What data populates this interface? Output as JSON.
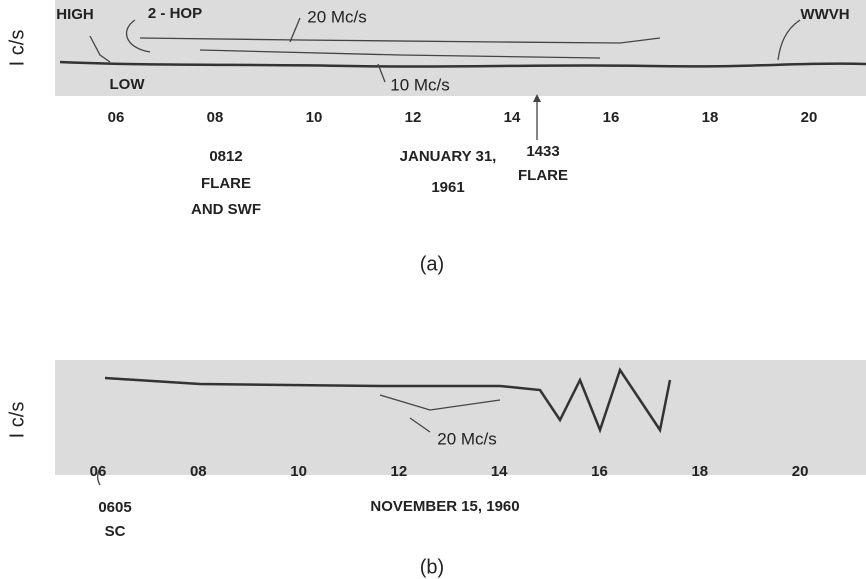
{
  "panel_a": {
    "y_label": "I c/s",
    "hours": [
      "06",
      "08",
      "10",
      "12",
      "14",
      "16",
      "18",
      "20"
    ],
    "annotations": {
      "high": "HIGH",
      "low": "LOW",
      "two_hop": "2 - HOP",
      "mc20": "20 Mc/s",
      "mc10": "10 Mc/s",
      "wwvh": "WWVH",
      "flare1": [
        "0812",
        "FLARE",
        "AND SWF"
      ],
      "date": [
        "JANUARY 31,",
        "1961"
      ],
      "flare2": [
        "1433",
        "FLARE"
      ]
    },
    "caption": "(a)"
  },
  "panel_b": {
    "y_label": "I c/s",
    "hours": [
      "06",
      "08",
      "10",
      "12",
      "14",
      "16",
      "18",
      "20"
    ],
    "annotations": {
      "mc20": "20 Mc/s",
      "sc": [
        "0605",
        "SC"
      ],
      "date": "NOVEMBER 15, 1960"
    },
    "caption": "(b)"
  }
}
